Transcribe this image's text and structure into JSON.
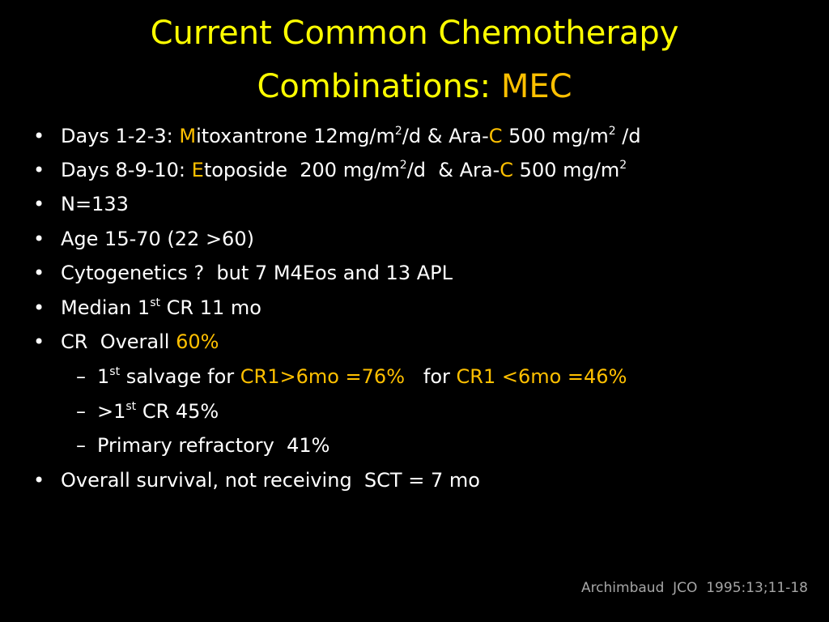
{
  "title": [
    "Current Common Chemotherapy",
    "Combinations: ",
    "MEC"
  ],
  "bullets": [
    [
      "Days 1-2-3: ",
      "M",
      "itoxantrone 12mg/m",
      "2",
      "/d & Ara-",
      "C",
      " 500 mg/m",
      "2",
      " /d"
    ],
    [
      "Days 8-9-10: ",
      "E",
      "toposide  200 mg/m",
      "2",
      "/d  & Ara-",
      "C",
      " 500 mg/m",
      "2"
    ],
    [
      "N=133"
    ],
    [
      "Age 15-70 (22 >60)"
    ],
    [
      "Cytogenetics ?  but 7 M4Eos and 13 APL"
    ],
    [
      "Median 1",
      "st",
      " CR 11 mo"
    ],
    [
      "CR  Overall ",
      "60%"
    ],
    [
      "Overall survival, not receiving  SCT = 7 mo"
    ]
  ],
  "sub_bullets": [
    [
      "1",
      "st",
      " salvage for ",
      "CR1>6mo =76%",
      "   for ",
      "CR1 <6mo =46%"
    ],
    [
      ">1",
      "st",
      " CR 45%"
    ],
    [
      "Primary refractory  41%"
    ]
  ],
  "citation": "Archimbaud  JCO  1995:13;11-18"
}
